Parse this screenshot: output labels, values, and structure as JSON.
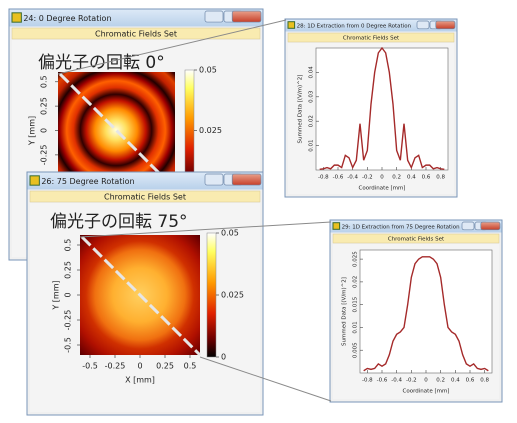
{
  "chart_data": [
    {
      "type": "heatmap",
      "window_title": "24: 0 Degree Rotation",
      "subtitle": "Chromatic Fields Set",
      "title": "偏光子の回転 0°",
      "ylabel": "Y [mm]",
      "ylim": [
        -0.6,
        0.6
      ],
      "yticks": [
        0.5,
        0.25,
        0,
        -0.25
      ],
      "clim": [
        0,
        0.05
      ],
      "colorbar_ticks": [
        0.05,
        0.025
      ],
      "pattern": "rings"
    },
    {
      "type": "heatmap",
      "window_title": "26: 75 Degree Rotation",
      "subtitle": "Chromatic Fields Set",
      "title": "偏光子の回転 75°",
      "xlabel": "X [mm]",
      "ylabel": "Y [mm]",
      "xlim": [
        -0.6,
        0.6
      ],
      "ylim": [
        -0.6,
        0.6
      ],
      "xticks": [
        -0.5,
        -0.25,
        0,
        0.25,
        0.5
      ],
      "yticks": [
        0.5,
        0.25,
        0,
        -0.25,
        -0.5
      ],
      "clim": [
        0,
        0.05
      ],
      "colorbar_ticks": [
        0.05,
        0.025,
        0
      ],
      "pattern": "disk"
    },
    {
      "type": "line",
      "window_title": "28: 1D Extraction from 0 Degree Rotation",
      "subtitle": "Chromatic Fields Set",
      "xlabel": "Coordinate [mm]",
      "ylabel": "Summed Data [(V/m)^2]",
      "xlim": [
        -0.9,
        0.9
      ],
      "ylim": [
        0,
        0.05
      ],
      "xticks": [
        -0.8,
        -0.6,
        -0.4,
        -0.2,
        0,
        0.2,
        0.4,
        0.6,
        0.8
      ],
      "yticks": [
        0.01,
        0.02,
        0.03,
        0.04
      ],
      "color": "#a52a2a",
      "x": [
        -0.85,
        -0.8,
        -0.75,
        -0.7,
        -0.65,
        -0.6,
        -0.55,
        -0.5,
        -0.45,
        -0.4,
        -0.35,
        -0.3,
        -0.25,
        -0.2,
        -0.15,
        -0.1,
        -0.05,
        0,
        0.05,
        0.1,
        0.15,
        0.2,
        0.25,
        0.3,
        0.35,
        0.4,
        0.45,
        0.5,
        0.55,
        0.6,
        0.65,
        0.7,
        0.75,
        0.8,
        0.85
      ],
      "values": [
        0.0003,
        0.0005,
        0.001,
        0.0005,
        0.002,
        0.002,
        0.001,
        0.006,
        0.005,
        0.001,
        0.004,
        0.019,
        0.004,
        0.008,
        0.027,
        0.04,
        0.048,
        0.05,
        0.048,
        0.04,
        0.027,
        0.008,
        0.004,
        0.019,
        0.004,
        0.001,
        0.005,
        0.006,
        0.001,
        0.002,
        0.002,
        0.0005,
        0.001,
        0.0005,
        0.0003
      ]
    },
    {
      "type": "line",
      "window_title": "29: 1D Extraction from 75 Degree Rotation",
      "subtitle": "Chromatic Fields Set",
      "xlabel": "Coordinate [mm]",
      "ylabel": "Summed Data [(V/m)^2]",
      "xlim": [
        -0.9,
        0.9
      ],
      "ylim": [
        0,
        0.027
      ],
      "xticks": [
        -0.8,
        -0.6,
        -0.4,
        -0.2,
        0,
        0.2,
        0.4,
        0.6,
        0.8
      ],
      "yticks": [
        0.005,
        0.01,
        0.015,
        0.02,
        0.025
      ],
      "color": "#a52a2a",
      "x": [
        -0.85,
        -0.8,
        -0.75,
        -0.7,
        -0.65,
        -0.6,
        -0.55,
        -0.5,
        -0.45,
        -0.4,
        -0.35,
        -0.3,
        -0.25,
        -0.2,
        -0.15,
        -0.1,
        -0.05,
        0,
        0.05,
        0.1,
        0.15,
        0.2,
        0.25,
        0.3,
        0.35,
        0.4,
        0.45,
        0.5,
        0.55,
        0.6,
        0.65,
        0.7,
        0.75,
        0.8,
        0.85
      ],
      "values": [
        0.0005,
        0.001,
        0.0008,
        0.001,
        0.002,
        0.0015,
        0.002,
        0.004,
        0.007,
        0.0085,
        0.009,
        0.01,
        0.015,
        0.021,
        0.024,
        0.025,
        0.0255,
        0.0255,
        0.0255,
        0.025,
        0.024,
        0.021,
        0.015,
        0.01,
        0.009,
        0.0085,
        0.007,
        0.004,
        0.002,
        0.0015,
        0.002,
        0.001,
        0.0008,
        0.001,
        0.0005
      ]
    }
  ]
}
